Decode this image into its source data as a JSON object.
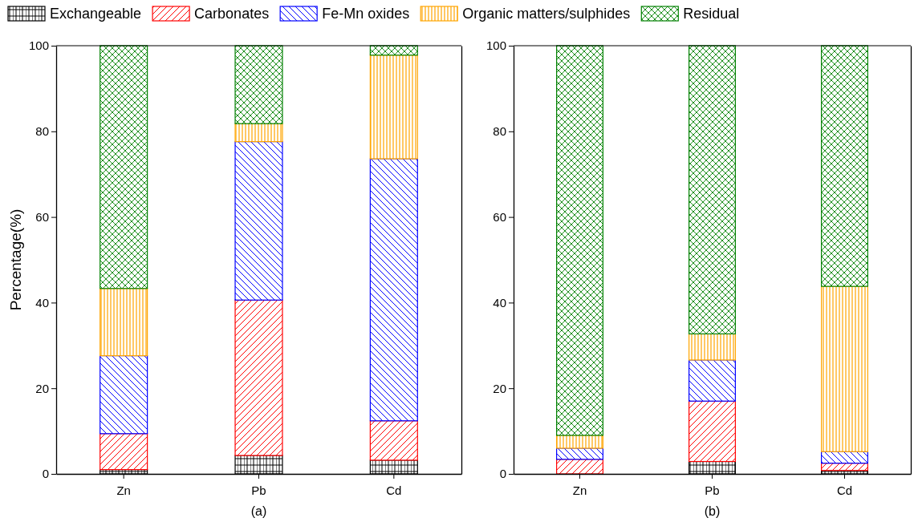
{
  "chart_data": [
    {
      "type": "bar",
      "stacked": true,
      "xlabel": "(a)",
      "ylabel": "Percentage(%)",
      "categories": [
        "Zn",
        "Pb",
        "Cd"
      ],
      "ylim": [
        0,
        100
      ],
      "yticks": [
        0,
        20,
        40,
        60,
        80,
        100
      ],
      "legend": "top",
      "series": [
        {
          "name": "Exchangeable",
          "color": "#000000",
          "values": [
            1.0,
            4.3,
            3.2
          ]
        },
        {
          "name": "Carbonates",
          "color": "#ff0000",
          "values": [
            8.4,
            36.3,
            9.2
          ]
        },
        {
          "name": "Fe-Mn oxides",
          "color": "#0000ff",
          "values": [
            18.2,
            37.0,
            61.2
          ]
        },
        {
          "name": "Organic matters/sulphides",
          "color": "#ffa500",
          "values": [
            15.7,
            4.2,
            24.2
          ]
        },
        {
          "name": "Residual",
          "color": "#008000",
          "values": [
            56.7,
            18.2,
            2.2
          ]
        }
      ]
    },
    {
      "type": "bar",
      "stacked": true,
      "xlabel": "(b)",
      "categories": [
        "Zn",
        "Pb",
        "Cd"
      ],
      "ylim": [
        0,
        100
      ],
      "yticks": [
        0,
        20,
        40,
        60,
        80,
        100
      ],
      "series": [
        {
          "color": "#000000",
          "values": [
            null,
            2.9,
            0.8
          ]
        },
        {
          "color": "#ff0000",
          "values": [
            3.4,
            14.1,
            1.7
          ]
        },
        {
          "color": "#0000ff",
          "values": [
            2.6,
            9.6,
            2.7
          ]
        },
        {
          "color": "#ffa500",
          "values": [
            3.0,
            6.1,
            38.6
          ]
        },
        {
          "color": "#008000",
          "values": [
            91.0,
            67.3,
            56.2
          ]
        }
      ]
    }
  ]
}
